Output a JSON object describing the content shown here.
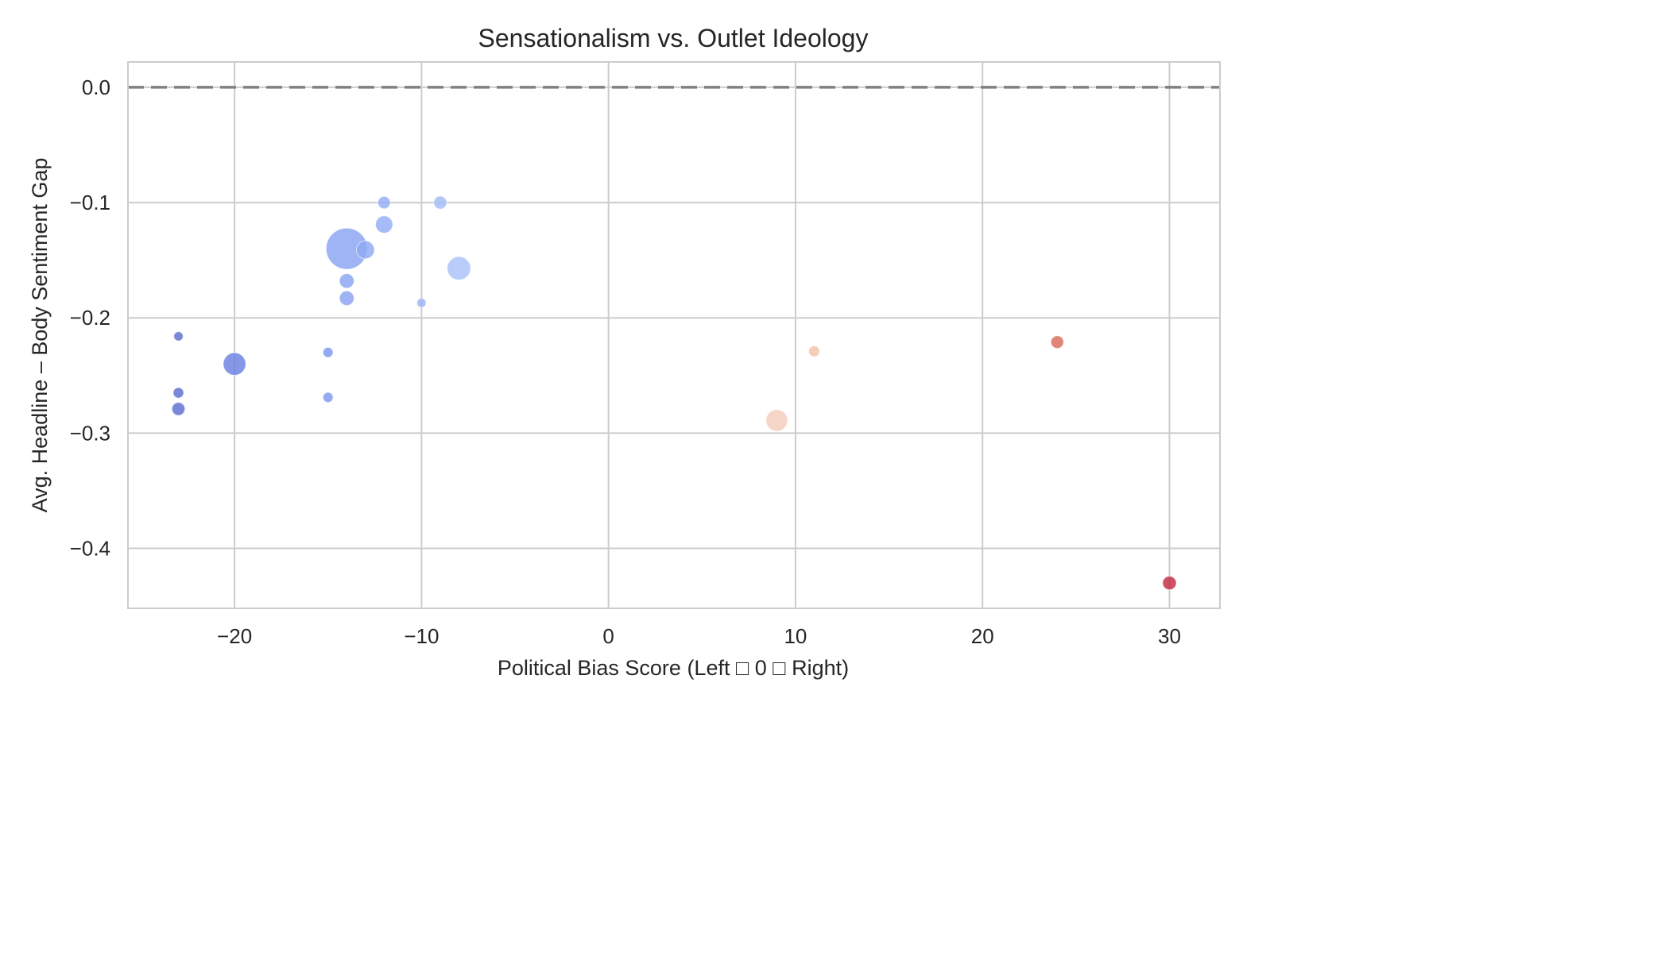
{
  "chart_data": {
    "type": "scatter",
    "title": "Sensationalism vs. Outlet Ideology",
    "xlabel": "Political Bias Score (Left □ 0 □ Right)",
    "ylabel": "Avg. Headline – Body Sentiment Gap",
    "xlim": [
      -25.7,
      32.7
    ],
    "ylim": [
      -0.452,
      0.022
    ],
    "xticks": [
      -20,
      -10,
      0,
      10,
      20,
      30
    ],
    "xtick_labels": [
      "−20",
      "−10",
      "0",
      "10",
      "20",
      "30"
    ],
    "yticks": [
      0.0,
      -0.1,
      -0.2,
      -0.3,
      -0.4
    ],
    "ytick_labels": [
      "0.0",
      "−0.1",
      "−0.2",
      "−0.3",
      "−0.4"
    ],
    "grid": true,
    "legend": "none",
    "reference_line": {
      "y": 0.0,
      "style": "dashed",
      "color": "#808080"
    },
    "colormap": "coolwarm",
    "points": [
      {
        "x": -23,
        "y": -0.216,
        "size": 1,
        "color": "#5b6fd0"
      },
      {
        "x": -23,
        "y": -0.265,
        "size": 1.3,
        "color": "#5b6fd0"
      },
      {
        "x": -23,
        "y": -0.279,
        "size": 2,
        "color": "#5b6fd0"
      },
      {
        "x": -20,
        "y": -0.24,
        "size": 6,
        "color": "#6a80e0"
      },
      {
        "x": -15,
        "y": -0.23,
        "size": 1.2,
        "color": "#7e98ee"
      },
      {
        "x": -15,
        "y": -0.269,
        "size": 1.2,
        "color": "#7e98ee"
      },
      {
        "x": -14,
        "y": -0.14,
        "size": 20,
        "color": "#8aa3f2"
      },
      {
        "x": -14,
        "y": -0.168,
        "size": 2.5,
        "color": "#8aa3f2"
      },
      {
        "x": -14,
        "y": -0.183,
        "size": 2.5,
        "color": "#8aa3f2"
      },
      {
        "x": -13,
        "y": -0.141,
        "size": 3.8,
        "color": "#8fa8f3"
      },
      {
        "x": -12,
        "y": -0.1,
        "size": 1.8,
        "color": "#93acf5"
      },
      {
        "x": -12,
        "y": -0.119,
        "size": 3.5,
        "color": "#93acf5"
      },
      {
        "x": -10,
        "y": -0.187,
        "size": 1,
        "color": "#9db5f7"
      },
      {
        "x": -9,
        "y": -0.1,
        "size": 2,
        "color": "#a4bbf8"
      },
      {
        "x": -8,
        "y": -0.157,
        "size": 6.5,
        "color": "#aac1f9"
      },
      {
        "x": 9,
        "y": -0.289,
        "size": 5.5,
        "color": "#f2cdbc"
      },
      {
        "x": 11,
        "y": -0.229,
        "size": 1.4,
        "color": "#f1c2aa"
      },
      {
        "x": 24,
        "y": -0.221,
        "size": 1.9,
        "color": "#d96b5b"
      },
      {
        "x": 30,
        "y": -0.43,
        "size": 2.2,
        "color": "#c42a42"
      }
    ]
  }
}
